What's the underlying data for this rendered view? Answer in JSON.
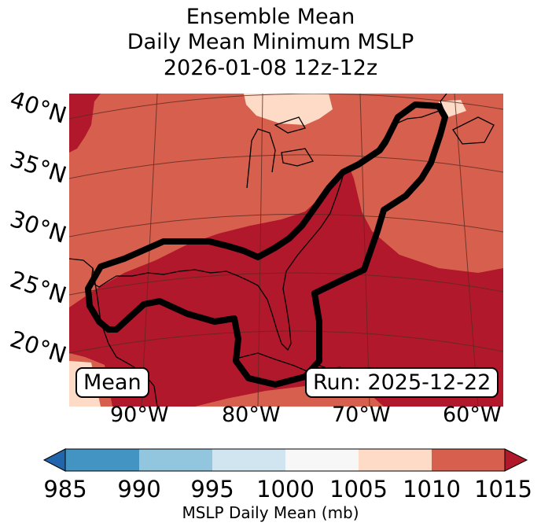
{
  "title": {
    "line1": "Ensemble Mean",
    "line2": "Daily Mean Minimum MSLP",
    "line3": "2026-01-08 12z-12z"
  },
  "lat_labels": [
    "40°N",
    "35°N",
    "30°N",
    "25°N",
    "20°N"
  ],
  "lon_labels": [
    "90°W",
    "80°W",
    "70°W",
    "60°W"
  ],
  "mean_box": "Mean",
  "run_box": "Run: 2025-12-22",
  "colorbar": {
    "ticks": [
      "985",
      "990",
      "995",
      "1000",
      "1005",
      "1010",
      "1015"
    ],
    "label": "MSLP Daily Mean (mb)",
    "colors": [
      "#2166ac",
      "#4393c3",
      "#92c5de",
      "#d1e5f0",
      "#f7f7f7",
      "#fddbc7",
      "#d6604d",
      "#b2182b"
    ]
  },
  "fill_colors": {
    "dark_red": "#b2182b",
    "red": "#d6604d",
    "light": "#fddbc7"
  }
}
